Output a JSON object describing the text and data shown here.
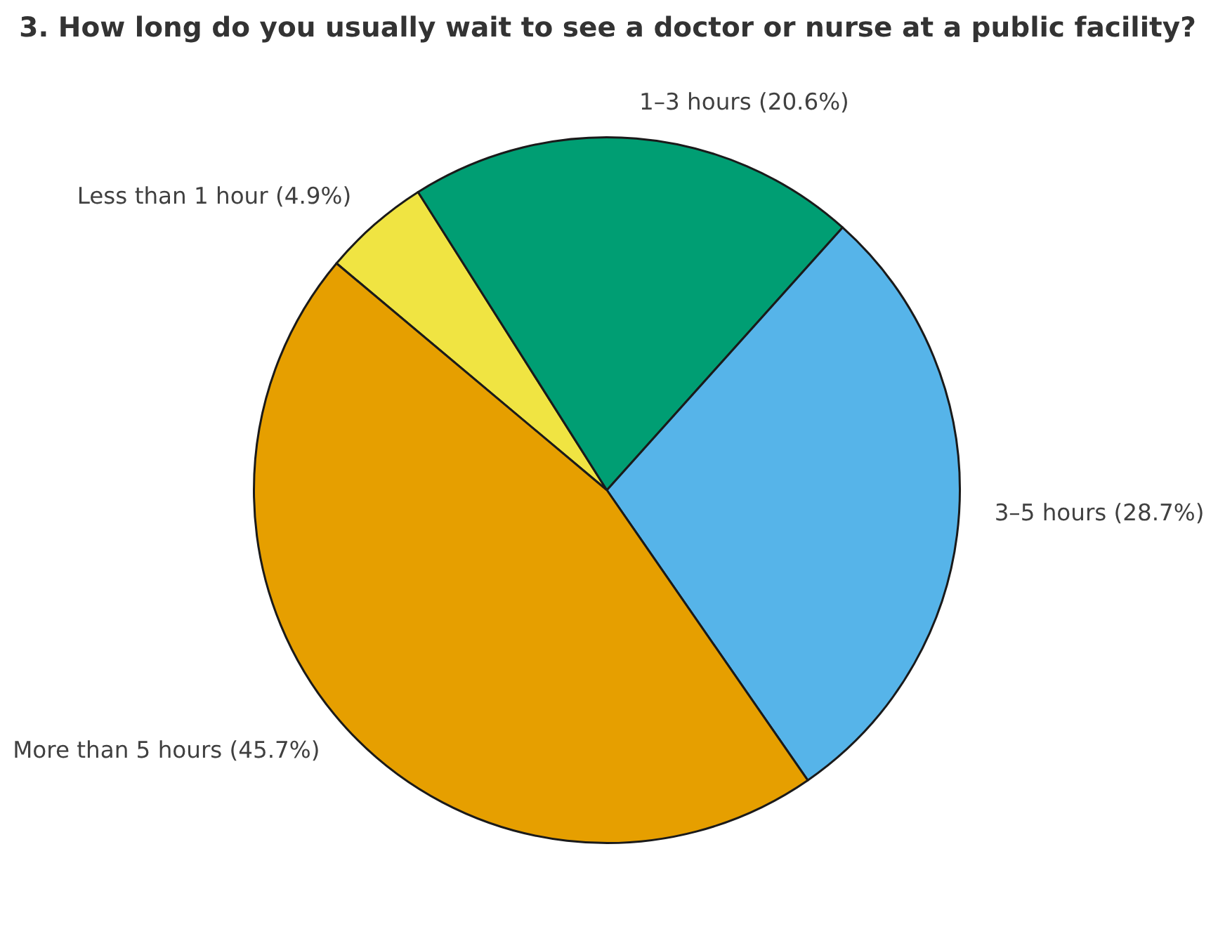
{
  "chart_data": {
    "type": "pie",
    "title": "3. How long do you usually wait to see a doctor or nurse at a public facility?",
    "categories": [
      "Less than 1 hour (4.9%)",
      "1–3 hours (20.6%)",
      "3–5 hours (28.7%)",
      "More than 5 hours (45.7%)"
    ],
    "values": [
      4.9,
      20.6,
      28.7,
      45.7
    ],
    "colors": [
      "#f0e442",
      "#009e73",
      "#56b4e9",
      "#e69f00"
    ],
    "legend": false
  }
}
